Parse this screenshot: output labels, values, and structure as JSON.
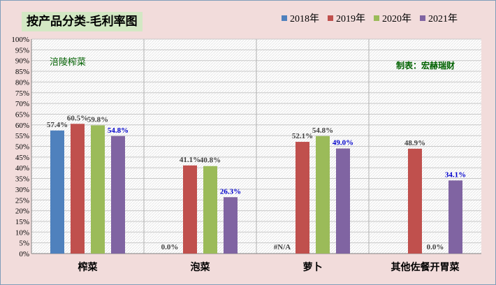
{
  "chart_data": {
    "type": "bar",
    "title": "按产品分类-毛利率图",
    "categories": [
      "榨菜",
      "泡菜",
      "萝卜",
      "其他佐餐开胃菜"
    ],
    "series": [
      {
        "name": "2018年",
        "color": "#4f81bd",
        "values": [
          57.4,
          0.0,
          null,
          null
        ],
        "labels": [
          "57.4%",
          "0.0%",
          "#N/A",
          ""
        ]
      },
      {
        "name": "2019年",
        "color": "#c0504d",
        "values": [
          60.5,
          41.1,
          52.1,
          48.9
        ],
        "labels": [
          "60.5%",
          "41.1%",
          "52.1%",
          "48.9%"
        ]
      },
      {
        "name": "2020年",
        "color": "#9bbb59",
        "values": [
          59.8,
          40.8,
          54.8,
          0.0
        ],
        "labels": [
          "59.8%",
          "40.8%",
          "54.8%",
          "0.0%"
        ]
      },
      {
        "name": "2021年",
        "color": "#8064a2",
        "values": [
          54.8,
          26.3,
          49.0,
          34.1
        ],
        "labels": [
          "54.8%",
          "26.3%",
          "49.0%",
          "34.1%"
        ]
      }
    ],
    "ylim": [
      0,
      100
    ],
    "ytick_step": 5,
    "ytick_labels": [
      "0%",
      "5%",
      "10%",
      "15%",
      "20%",
      "25%",
      "30%",
      "35%",
      "40%",
      "45%",
      "50%",
      "55%",
      "60%",
      "65%",
      "70%",
      "75%",
      "80%",
      "85%",
      "90%",
      "95%",
      "100%"
    ],
    "grid": true,
    "legend": "top-right",
    "label_colors": {
      "default": "#404040",
      "highlight": "#0000cc"
    }
  },
  "annotations": {
    "product_note": "涪陵榨菜",
    "credit": "制表：宏赫瑞财"
  }
}
